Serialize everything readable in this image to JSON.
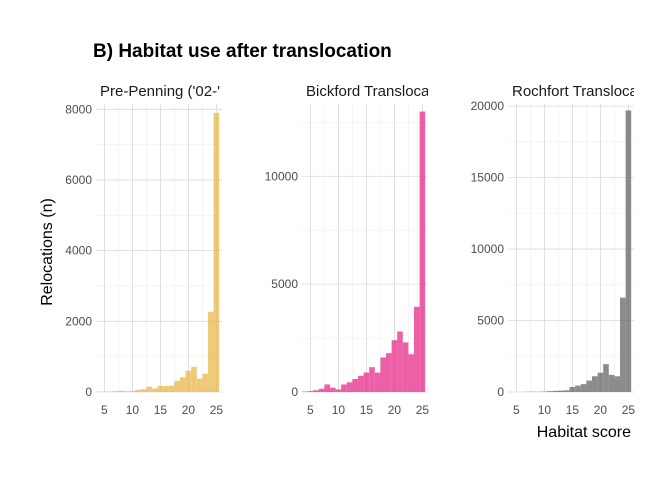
{
  "chart_data": {
    "type": "bar",
    "title": "B) Habitat use after translocation",
    "xlabel": "Habitat score",
    "ylabel": "Relocations (n)",
    "bin_width": 1,
    "xlim": [
      3.5,
      26
    ],
    "x_ticks": [
      5,
      10,
      15,
      20,
      25
    ],
    "grid": true,
    "panels": [
      {
        "name": "Pre-Penning ('02-'",
        "color": "#E8B84B",
        "ylim": [
          0,
          8150
        ],
        "y_ticks": [
          0,
          2000,
          4000,
          6000,
          8000
        ],
        "bins": [
          4,
          5,
          6,
          7,
          8,
          9,
          10,
          11,
          12,
          13,
          14,
          15,
          16,
          17,
          18,
          19,
          20,
          21,
          22,
          23,
          24,
          25
        ],
        "values": [
          5,
          10,
          15,
          25,
          35,
          20,
          30,
          60,
          80,
          150,
          100,
          170,
          170,
          180,
          320,
          420,
          600,
          710,
          380,
          520,
          2270,
          7900
        ]
      },
      {
        "name": "Bickford Transloca",
        "color": "#E7298A",
        "ylim": [
          0,
          13350
        ],
        "y_ticks": [
          0,
          5000,
          10000
        ],
        "bins": [
          4,
          5,
          6,
          7,
          8,
          9,
          10,
          11,
          12,
          13,
          14,
          15,
          16,
          17,
          18,
          19,
          20,
          21,
          22,
          23,
          24,
          25
        ],
        "values": [
          20,
          40,
          80,
          150,
          350,
          200,
          120,
          350,
          450,
          600,
          750,
          900,
          1150,
          900,
          1600,
          1800,
          2400,
          2800,
          2300,
          1750,
          3950,
          13000
        ]
      },
      {
        "name": "Rochfort Transloca",
        "color": "#666666",
        "ylim": [
          0,
          20150
        ],
        "y_ticks": [
          0,
          5000,
          10000,
          15000,
          20000
        ],
        "bins": [
          4,
          5,
          6,
          7,
          8,
          9,
          10,
          11,
          12,
          13,
          14,
          15,
          16,
          17,
          18,
          19,
          20,
          21,
          22,
          23,
          24,
          25
        ],
        "values": [
          0,
          0,
          0,
          10,
          20,
          15,
          30,
          60,
          80,
          100,
          120,
          350,
          450,
          550,
          800,
          1100,
          1350,
          1950,
          1200,
          1100,
          6600,
          19700
        ]
      }
    ]
  }
}
